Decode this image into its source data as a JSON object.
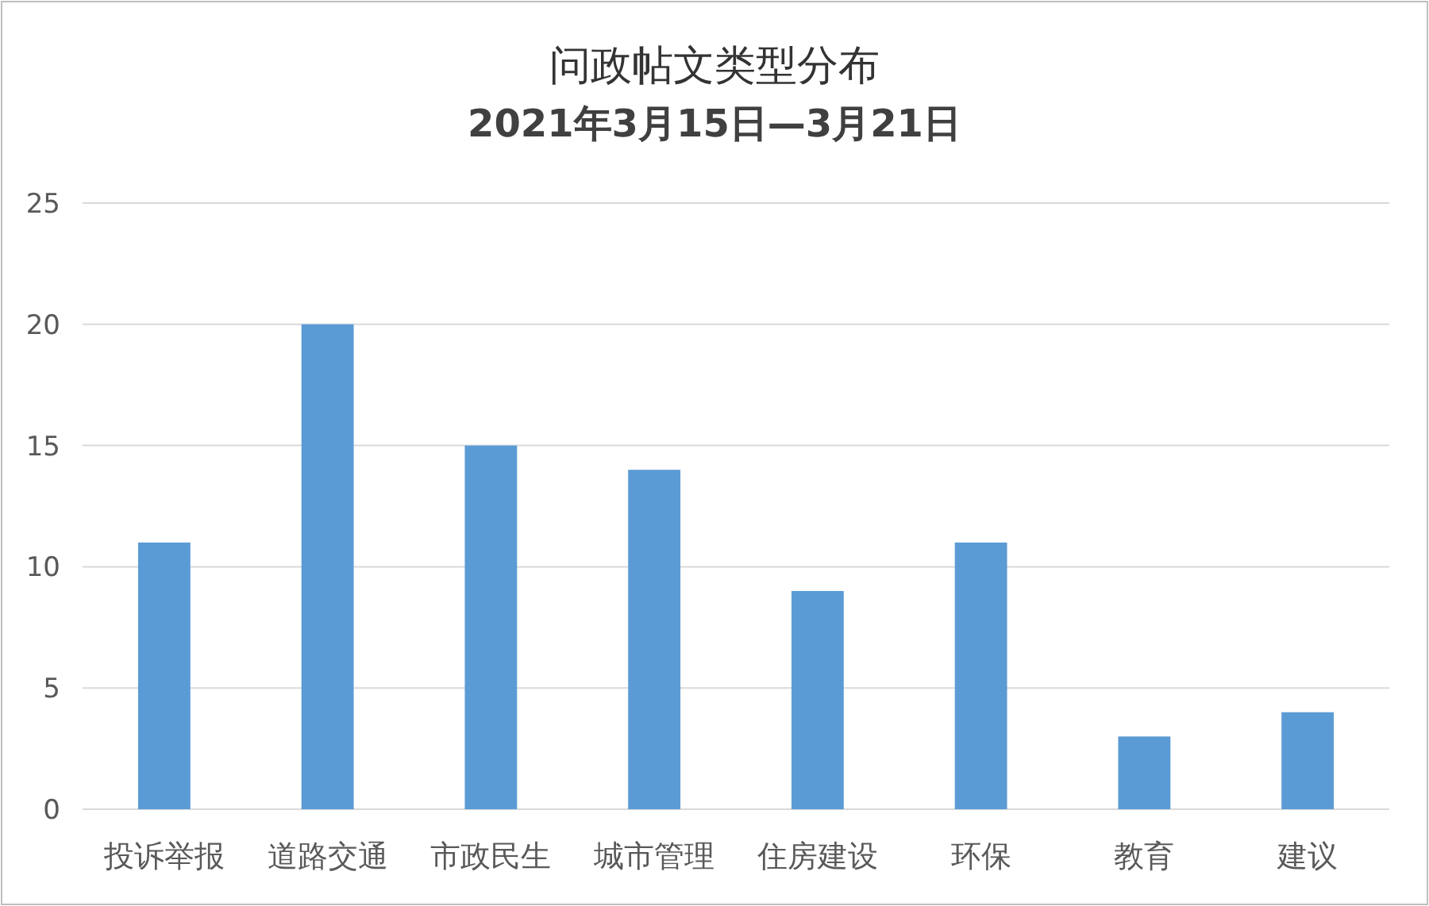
{
  "chart_data": {
    "type": "bar",
    "title": "问政帖文类型分布",
    "subtitle": "2021年3月15日—3月21日",
    "categories": [
      "投诉举报",
      "道路交通",
      "市政民生",
      "城市管理",
      "住房建设",
      "环保",
      "教育",
      "建议"
    ],
    "values": [
      11,
      20,
      15,
      14,
      9,
      11,
      3,
      4
    ],
    "color": "#5b9bd5",
    "ylim": [
      0,
      25
    ],
    "yticks": [
      0,
      5,
      10,
      15,
      20,
      25
    ],
    "grid": "y"
  }
}
